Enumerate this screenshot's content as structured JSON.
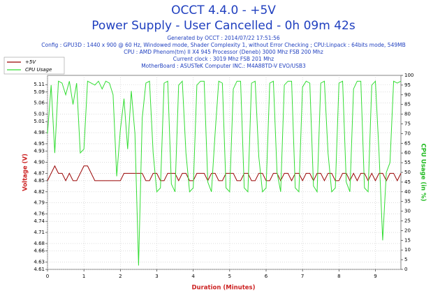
{
  "chart_data": {
    "type": "line",
    "title": "OCCT 4.4.0 - +5V",
    "subtitle": "Power Supply - User Cancelled - 0h 09m 42s",
    "info": [
      "Generated by OCCT : 2014/07/22 17:51:56",
      "Config : GPU3D : 1440 x 900 @ 60 Hz, Windowed mode, Shader Complexity 1, without Error Checking ; CPU:Linpack : 64bits mode, 549MB",
      "CPU : AMD Phenom(tm) II X4 945 Processor (Deneb) 3000 Mhz FSB 200 Mhz",
      "Current clock : 3019 Mhz FSB 201 Mhz",
      "MotherBoard : ASUSTeK Computer INC.: M4A88TD-V EVO/USB3"
    ],
    "x_label": "Duration (Minutes)",
    "y_label": "Voltage (V)",
    "y2_label": "CPU Usage (in %)",
    "legend": "top-left",
    "grid": true,
    "xlim": [
      0,
      9.7
    ],
    "xticks": [
      0,
      1,
      2,
      3,
      4,
      5,
      6,
      7,
      8,
      9
    ],
    "ylim": [
      4.61,
      5.135
    ],
    "yticks": [
      4.61,
      4.63,
      4.66,
      4.68,
      4.71,
      4.74,
      4.76,
      4.79,
      4.82,
      4.85,
      4.87,
      {
        "value": 4.9,
        "label": "4.90"
      },
      4.93,
      4.95,
      4.98,
      5.01,
      5.03,
      5.06,
      5.09,
      5.11
    ],
    "y2lim": [
      0,
      100
    ],
    "y2ticks": [
      0,
      5,
      10,
      15,
      20,
      25,
      30,
      35,
      40,
      45,
      50,
      55,
      60,
      65,
      70,
      75,
      80,
      85,
      90,
      95,
      100
    ],
    "x": [
      0,
      0.1,
      0.2,
      0.3,
      0.4,
      0.5,
      0.6,
      0.7,
      0.8,
      0.9,
      1,
      1.1,
      1.2,
      1.3,
      1.4,
      1.5,
      1.6,
      1.7,
      1.8,
      1.9,
      2,
      2.1,
      2.2,
      2.3,
      2.4,
      2.5,
      2.6,
      2.7,
      2.8,
      2.9,
      3,
      3.1,
      3.2,
      3.3,
      3.4,
      3.5,
      3.6,
      3.7,
      3.8,
      3.9,
      4,
      4.1,
      4.2,
      4.3,
      4.4,
      4.5,
      4.6,
      4.7,
      4.8,
      4.9,
      5,
      5.1,
      5.2,
      5.3,
      5.4,
      5.5,
      5.6,
      5.7,
      5.8,
      5.9,
      6,
      6.1,
      6.2,
      6.3,
      6.4,
      6.5,
      6.6,
      6.7,
      6.8,
      6.9,
      7,
      7.1,
      7.2,
      7.3,
      7.4,
      7.5,
      7.6,
      7.7,
      7.8,
      7.9,
      8,
      8.1,
      8.2,
      8.3,
      8.4,
      8.5,
      8.6,
      8.7,
      8.8,
      8.9,
      9,
      9.1,
      9.2,
      9.3,
      9.4,
      9.5,
      9.6,
      9.7
    ],
    "series": [
      {
        "name": "+5V",
        "color": "#990000",
        "values": [
          4.85,
          4.87,
          4.89,
          4.87,
          4.87,
          4.85,
          4.87,
          4.85,
          4.85,
          4.87,
          4.89,
          4.89,
          4.87,
          4.85,
          4.85,
          4.85,
          4.85,
          4.85,
          4.85,
          4.85,
          4.85,
          4.87,
          4.87,
          4.87,
          4.87,
          4.87,
          4.87,
          4.85,
          4.85,
          4.87,
          4.87,
          4.85,
          4.85,
          4.87,
          4.87,
          4.87,
          4.85,
          4.87,
          4.87,
          4.85,
          4.85,
          4.87,
          4.87,
          4.87,
          4.85,
          4.87,
          4.87,
          4.85,
          4.85,
          4.87,
          4.87,
          4.87,
          4.85,
          4.85,
          4.87,
          4.87,
          4.85,
          4.85,
          4.87,
          4.87,
          4.85,
          4.85,
          4.87,
          4.87,
          4.85,
          4.87,
          4.87,
          4.85,
          4.87,
          4.87,
          4.85,
          4.87,
          4.87,
          4.85,
          4.87,
          4.87,
          4.85,
          4.87,
          4.87,
          4.85,
          4.85,
          4.87,
          4.87,
          4.85,
          4.87,
          4.85,
          4.87,
          4.87,
          4.85,
          4.87,
          4.85,
          4.87,
          4.87,
          4.85,
          4.87,
          4.87,
          4.85,
          4.87
        ]
      },
      {
        "name": "CPU Usage",
        "color": "#33dd33",
        "axis": "y2",
        "values": [
          70,
          95,
          60,
          97,
          96,
          90,
          97,
          85,
          96,
          60,
          62,
          97,
          96,
          95,
          97,
          93,
          97,
          96,
          90,
          48,
          72,
          88,
          62,
          92,
          70,
          2,
          78,
          96,
          97,
          60,
          40,
          42,
          96,
          97,
          44,
          40,
          95,
          97,
          60,
          40,
          42,
          95,
          97,
          97,
          45,
          40,
          70,
          97,
          96,
          42,
          40,
          93,
          97,
          97,
          42,
          40,
          96,
          97,
          58,
          40,
          42,
          96,
          97,
          50,
          40,
          95,
          97,
          97,
          42,
          40,
          94,
          97,
          96,
          43,
          40,
          96,
          97,
          60,
          40,
          42,
          96,
          97,
          45,
          40,
          93,
          97,
          97,
          42,
          40,
          95,
          97,
          60,
          15,
          50,
          55,
          97,
          96,
          97
        ]
      }
    ]
  }
}
